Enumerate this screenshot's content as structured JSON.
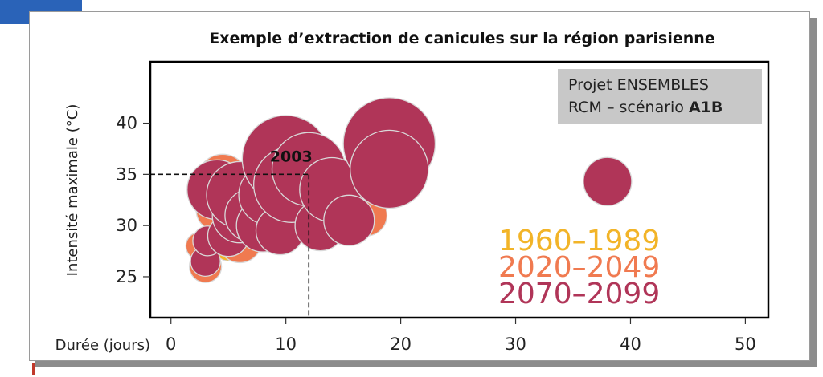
{
  "chart_data": {
    "type": "scatter",
    "title": "Exemple d’extraction de canicules sur la région parisienne",
    "xlabel": "Durée (jours)",
    "ylabel": "Intensité maximale (°C)",
    "xlim": [
      -1.8,
      52
    ],
    "ylim": [
      21,
      46
    ],
    "xticks": [
      0,
      10,
      20,
      30,
      40,
      50
    ],
    "yticks": [
      25,
      30,
      35,
      40
    ],
    "grid": false,
    "info_box": {
      "line1": "Projet ENSEMBLES",
      "line2_prefix": "RCM – scénario ",
      "line2_bold": "A1B"
    },
    "legend": {
      "placement": "bottom-right",
      "entries": [
        {
          "label": "1960–1989",
          "color": "#f2b428"
        },
        {
          "label": "2020–2049",
          "color": "#f07a50"
        },
        {
          "label": "2070–2099",
          "color": "#b03558"
        }
      ]
    },
    "annotation": {
      "label": "2003",
      "x": 12,
      "y": 35
    },
    "series": [
      {
        "name": "1960–1989",
        "color": "#f2b428",
        "points": [
          {
            "x": 3,
            "y": 26.5,
            "r": 1.2
          },
          {
            "x": 4,
            "y": 29,
            "r": 1.3
          },
          {
            "x": 5,
            "y": 28,
            "r": 1.3
          }
        ]
      },
      {
        "name": "2020–2049",
        "color": "#f07a50",
        "points": [
          {
            "x": 3,
            "y": 26,
            "r": 1.4
          },
          {
            "x": 2.5,
            "y": 28,
            "r": 1.2
          },
          {
            "x": 4,
            "y": 31.5,
            "r": 1.8
          },
          {
            "x": 4.5,
            "y": 34.5,
            "r": 2.2
          },
          {
            "x": 6,
            "y": 28.5,
            "r": 1.9
          },
          {
            "x": 17,
            "y": 31,
            "r": 1.8
          },
          {
            "x": 10,
            "y": 33,
            "r": 2.3
          }
        ]
      },
      {
        "name": "2070–2099",
        "color": "#b03558",
        "points": [
          {
            "x": 3,
            "y": 26.5,
            "r": 1.3
          },
          {
            "x": 3.2,
            "y": 28.5,
            "r": 1.3
          },
          {
            "x": 5,
            "y": 29,
            "r": 1.8
          },
          {
            "x": 4,
            "y": 33.5,
            "r": 2.6
          },
          {
            "x": 6,
            "y": 31,
            "r": 2.4
          },
          {
            "x": 6,
            "y": 33,
            "r": 2.9
          },
          {
            "x": 7,
            "y": 31,
            "r": 2.3
          },
          {
            "x": 8,
            "y": 30,
            "r": 2.3
          },
          {
            "x": 8.5,
            "y": 33,
            "r": 2.6
          },
          {
            "x": 9.5,
            "y": 29.5,
            "r": 2.1
          },
          {
            "x": 10,
            "y": 36.5,
            "r": 3.8
          },
          {
            "x": 10.5,
            "y": 34,
            "r": 3.3
          },
          {
            "x": 12,
            "y": 35.5,
            "r": 3.2
          },
          {
            "x": 13,
            "y": 30,
            "r": 2.2
          },
          {
            "x": 14,
            "y": 33.5,
            "r": 2.8
          },
          {
            "x": 15.5,
            "y": 30.5,
            "r": 2.2
          },
          {
            "x": 19,
            "y": 38,
            "r": 4.0
          },
          {
            "x": 19,
            "y": 35.5,
            "r": 3.4
          },
          {
            "x": 38,
            "y": 34.3,
            "r": 2.1
          }
        ]
      }
    ]
  }
}
